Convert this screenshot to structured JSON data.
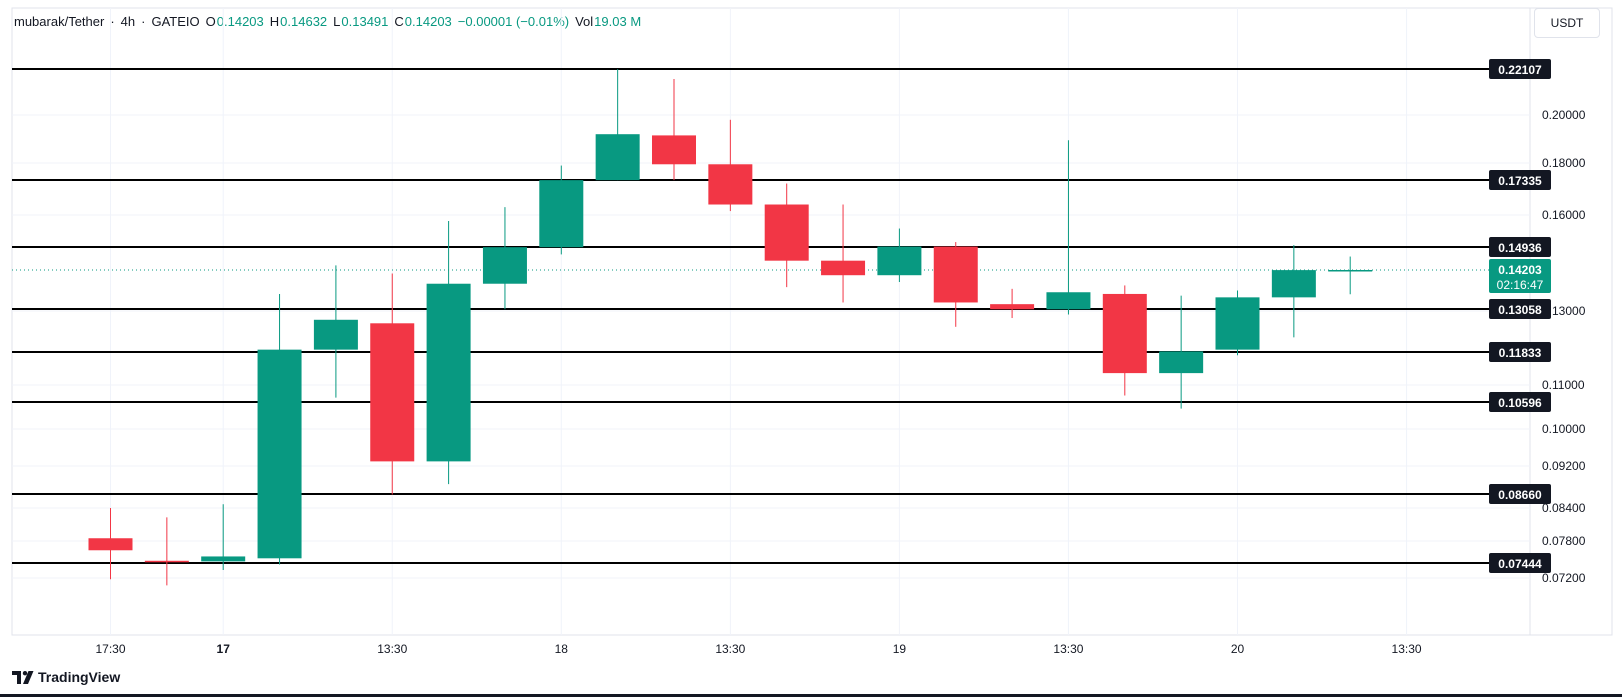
{
  "legend": {
    "symbol": "mubarak/Tether",
    "interval": "4h",
    "exchange": "GATEIO",
    "o_label": "O",
    "o_value": "0.14203",
    "h_label": "H",
    "h_value": "0.14632",
    "l_label": "L",
    "l_value": "0.13491",
    "c_label": "C",
    "c_value": "0.14203",
    "change": "−0.00001 (−0.01%)",
    "vol_label": "Vol",
    "vol_value": "19.03 M"
  },
  "currency_button": "USDT",
  "branding": "TradingView",
  "colors": {
    "up": "#089981",
    "down": "#f23645",
    "level_line": "#000000",
    "price_line": "#089981"
  },
  "chart_data": {
    "type": "candlestick",
    "x_ticks": [
      {
        "label": "17:30",
        "bar": 0,
        "bold": false
      },
      {
        "label": "17",
        "bar": 2,
        "bold": true
      },
      {
        "label": "13:30",
        "bar": 5,
        "bold": false
      },
      {
        "label": "18",
        "bar": 8,
        "bold": false
      },
      {
        "label": "13:30",
        "bar": 11,
        "bold": false
      },
      {
        "label": "19",
        "bar": 14,
        "bold": false
      },
      {
        "label": "13:30",
        "bar": 17,
        "bold": false
      },
      {
        "label": "20",
        "bar": 20,
        "bold": false
      },
      {
        "label": "13:30",
        "bar": 23,
        "bold": false
      }
    ],
    "y_ticks": [
      "0.20000",
      "0.18000",
      "0.16000",
      "0.13000",
      "0.11000",
      "0.10000",
      "0.09200",
      "0.08400",
      "0.07800",
      "0.07200"
    ],
    "levels": [
      "0.22107",
      "0.17335",
      "0.14936",
      "0.13058",
      "0.11833",
      "0.10596",
      "0.08660",
      "0.07444"
    ],
    "current_price": "0.14203",
    "countdown": "02:16:47",
    "candles": [
      {
        "o": 0.0785,
        "h": 0.084,
        "l": 0.0718,
        "c": 0.0765
      },
      {
        "o": 0.0748,
        "h": 0.0823,
        "l": 0.0708,
        "c": 0.0746
      },
      {
        "o": 0.0747,
        "h": 0.0847,
        "l": 0.0733,
        "c": 0.0755
      },
      {
        "o": 0.0752,
        "h": 0.135,
        "l": 0.0742,
        "c": 0.119
      },
      {
        "o": 0.119,
        "h": 0.1435,
        "l": 0.107,
        "c": 0.1275
      },
      {
        "o": 0.1265,
        "h": 0.141,
        "l": 0.0865,
        "c": 0.093
      },
      {
        "o": 0.093,
        "h": 0.158,
        "l": 0.0885,
        "c": 0.138
      },
      {
        "o": 0.138,
        "h": 0.163,
        "l": 0.1305,
        "c": 0.1493
      },
      {
        "o": 0.1493,
        "h": 0.179,
        "l": 0.147,
        "c": 0.1733
      },
      {
        "o": 0.1733,
        "h": 0.221,
        "l": 0.1733,
        "c": 0.192
      },
      {
        "o": 0.1915,
        "h": 0.2165,
        "l": 0.1733,
        "c": 0.1795
      },
      {
        "o": 0.1795,
        "h": 0.198,
        "l": 0.1615,
        "c": 0.164
      },
      {
        "o": 0.164,
        "h": 0.172,
        "l": 0.137,
        "c": 0.145
      },
      {
        "o": 0.145,
        "h": 0.164,
        "l": 0.1325,
        "c": 0.1405
      },
      {
        "o": 0.1405,
        "h": 0.1555,
        "l": 0.1385,
        "c": 0.1495
      },
      {
        "o": 0.1495,
        "h": 0.151,
        "l": 0.1255,
        "c": 0.1325
      },
      {
        "o": 0.132,
        "h": 0.1365,
        "l": 0.128,
        "c": 0.1305
      },
      {
        "o": 0.1305,
        "h": 0.1895,
        "l": 0.129,
        "c": 0.1355
      },
      {
        "o": 0.135,
        "h": 0.1375,
        "l": 0.1075,
        "c": 0.113
      },
      {
        "o": 0.113,
        "h": 0.1345,
        "l": 0.1045,
        "c": 0.1185
      },
      {
        "o": 0.119,
        "h": 0.136,
        "l": 0.1175,
        "c": 0.134
      },
      {
        "o": 0.134,
        "h": 0.15,
        "l": 0.1225,
        "c": 0.142
      },
      {
        "o": 0.14203,
        "h": 0.14632,
        "l": 0.13491,
        "c": 0.14203
      }
    ]
  }
}
